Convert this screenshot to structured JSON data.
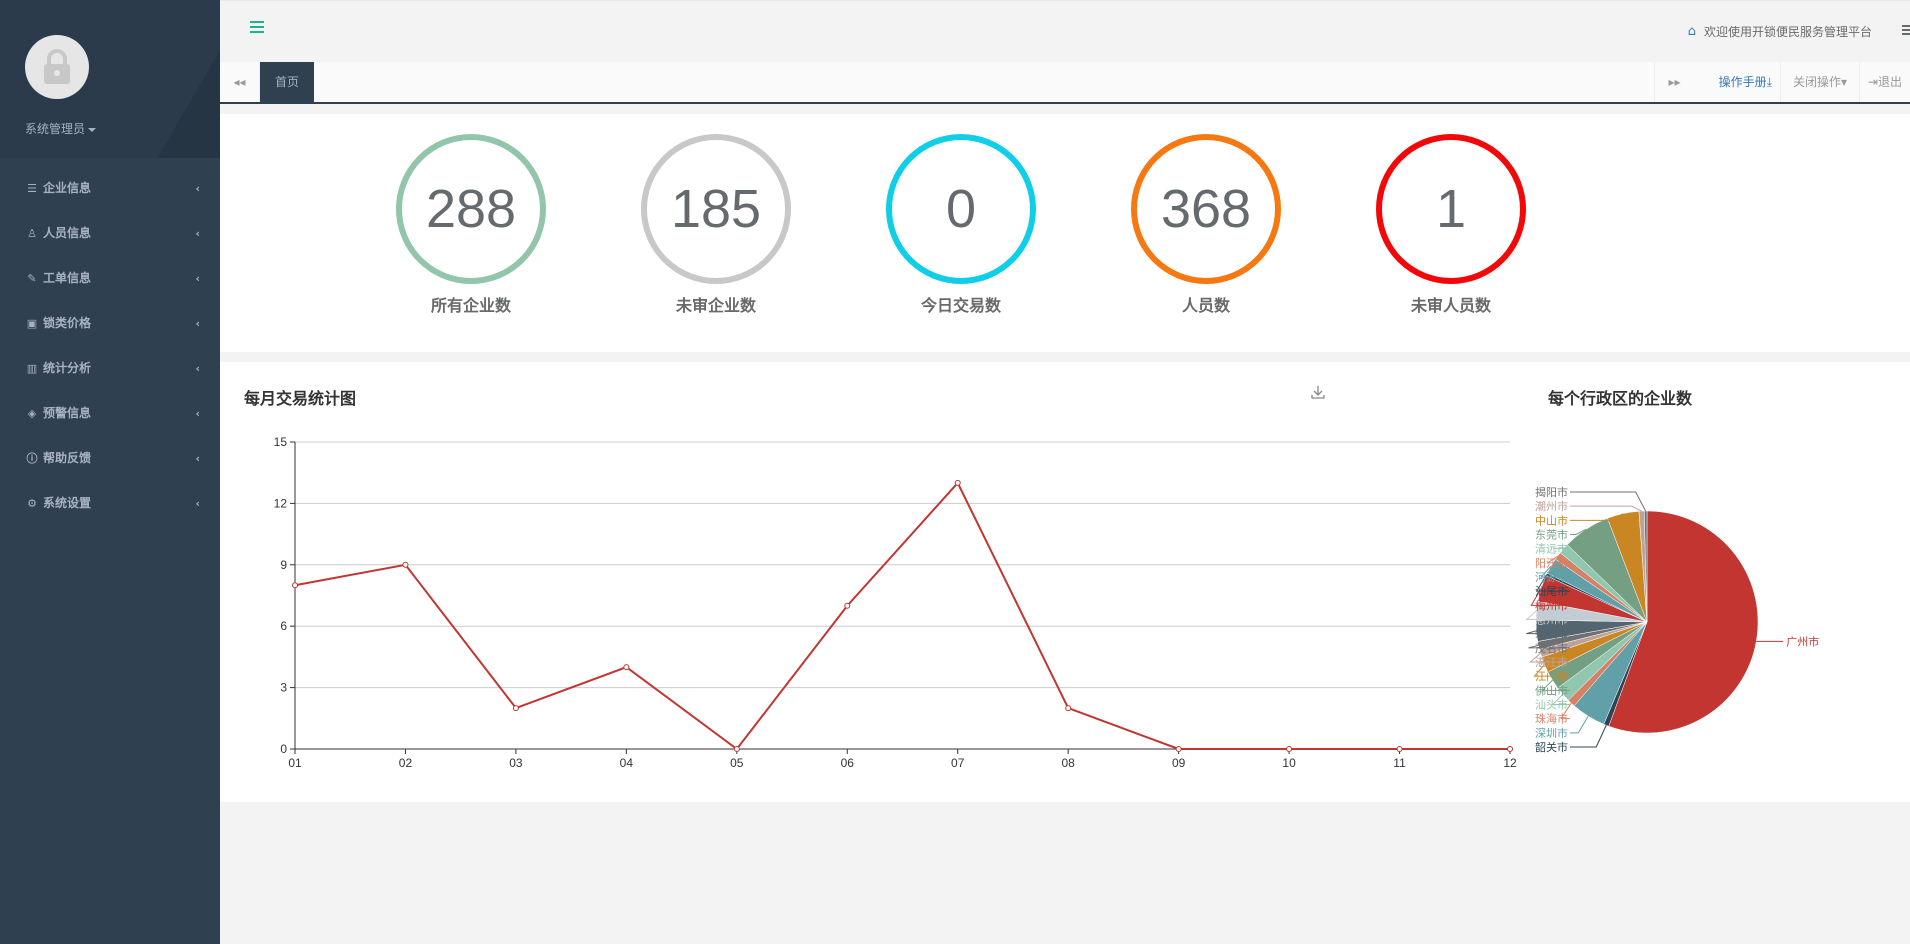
{
  "sidebar": {
    "user_name": "系统管理员",
    "menu": [
      {
        "label": "企业信息",
        "icon": "database-icon",
        "glyph": "☰"
      },
      {
        "label": "人员信息",
        "icon": "person-icon",
        "glyph": "♙"
      },
      {
        "label": "工单信息",
        "icon": "edit-icon",
        "glyph": "✎"
      },
      {
        "label": "锁类价格",
        "icon": "tag-icon",
        "glyph": "▣"
      },
      {
        "label": "统计分析",
        "icon": "bar-chart-icon",
        "glyph": "▥"
      },
      {
        "label": "预警信息",
        "icon": "shield-icon",
        "glyph": "◈"
      },
      {
        "label": "帮助反馈",
        "icon": "info-icon",
        "glyph": "ⓘ"
      },
      {
        "label": "系统设置",
        "icon": "gears-icon",
        "glyph": "⚙"
      }
    ]
  },
  "topbar": {
    "welcome": "欢迎使用开锁便民服务管理平台"
  },
  "tabs": {
    "home": "首页",
    "manual": "操作手册",
    "close_ops": "关闭操作",
    "logout": "退出"
  },
  "stats": [
    {
      "value": "288",
      "label": "所有企业数",
      "color": "#92c5a9"
    },
    {
      "value": "185",
      "label": "未审企业数",
      "color": "#c8c8c8"
    },
    {
      "value": "0",
      "label": "今日交易数",
      "color": "#0fcfe8"
    },
    {
      "value": "368",
      "label": "人员数",
      "color": "#f67810"
    },
    {
      "value": "1",
      "label": "未审人员数",
      "color": "#f20808"
    }
  ],
  "line_chart_title": "每月交易统计图",
  "pie_chart_title": "每个行政区的企业数",
  "chart_data": [
    {
      "type": "line",
      "title": "每月交易统计图",
      "categories": [
        "01",
        "02",
        "03",
        "04",
        "05",
        "06",
        "07",
        "08",
        "09",
        "10",
        "11",
        "12"
      ],
      "values": [
        8,
        9,
        2,
        4,
        0,
        7,
        13,
        2,
        0,
        0,
        0,
        0
      ],
      "ylim": [
        0,
        15
      ],
      "yticks": [
        0,
        3,
        6,
        9,
        12,
        15
      ],
      "color": "#c23531",
      "grid": true
    },
    {
      "type": "pie",
      "title": "每个行政区的企业数",
      "slices": [
        {
          "name": "广州市",
          "value": 144,
          "color": "#c23531"
        },
        {
          "name": "韶关市",
          "value": 2,
          "color": "#2f4554"
        },
        {
          "name": "深圳市",
          "value": 13,
          "color": "#61a0a8"
        },
        {
          "name": "珠海市",
          "value": 3,
          "color": "#d48265"
        },
        {
          "name": "汕头市",
          "value": 6,
          "color": "#91c7ae"
        },
        {
          "name": "佛山市",
          "value": 7,
          "color": "#749f83"
        },
        {
          "name": "江门市",
          "value": 6,
          "color": "#ca8622"
        },
        {
          "name": "湛江市",
          "value": 3,
          "color": "#bda29a"
        },
        {
          "name": "茂名市",
          "value": 3,
          "color": "#6e7074"
        },
        {
          "name": "肇庆市",
          "value": 8,
          "color": "#546570"
        },
        {
          "name": "惠州市",
          "value": 7,
          "color": "#c4ccd3"
        },
        {
          "name": "梅州市",
          "value": 10,
          "color": "#c23531"
        },
        {
          "name": "汕尾市",
          "value": 1,
          "color": "#2f4554"
        },
        {
          "name": "河源市",
          "value": 6,
          "color": "#61a0a8"
        },
        {
          "name": "阳江市",
          "value": 3,
          "color": "#d48265"
        },
        {
          "name": "清远市",
          "value": 4,
          "color": "#91c7ae"
        },
        {
          "name": "东莞市",
          "value": 18,
          "color": "#749f83"
        },
        {
          "name": "中山市",
          "value": 12,
          "color": "#ca8622"
        },
        {
          "name": "潮州市",
          "value": 2,
          "color": "#bda29a"
        },
        {
          "name": "揭阳市",
          "value": 1,
          "color": "#6e7074"
        }
      ]
    }
  ]
}
